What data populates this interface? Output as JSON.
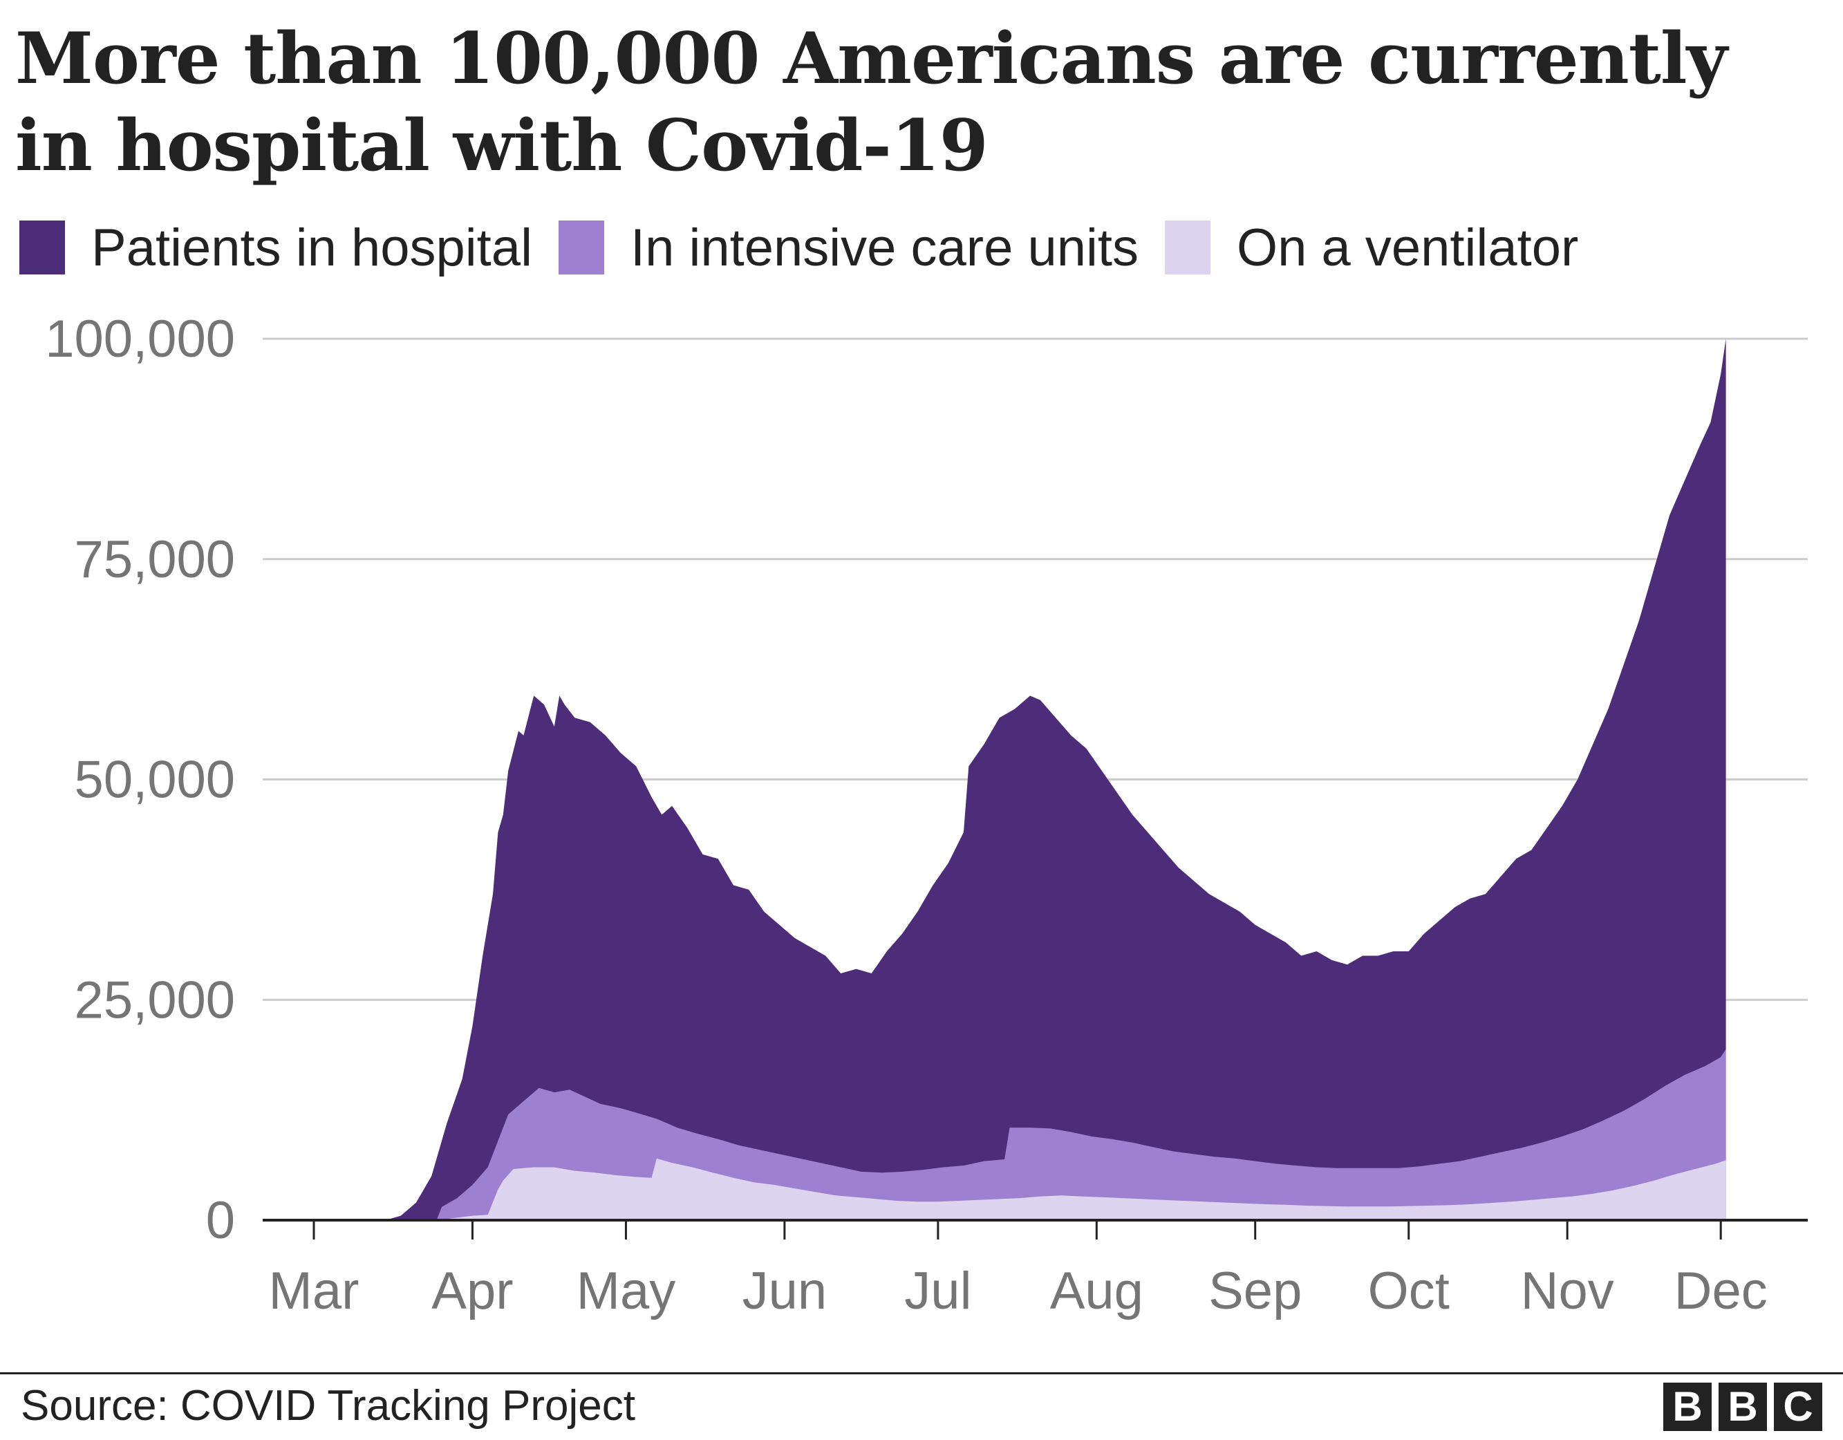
{
  "title": "More than 100,000 Americans are currently in hospital with Covid-19",
  "legend": [
    {
      "label": "Patients in hospital",
      "color": "#4d2c7a"
    },
    {
      "label": "In intensive care units",
      "color": "#9d80cf"
    },
    {
      "label": "On a ventilator",
      "color": "#ddd4f0"
    }
  ],
  "chart_data": {
    "type": "area",
    "title": "More than 100,000 Americans are currently in hospital with Covid-19",
    "xlabel": "",
    "ylabel": "",
    "ylim": [
      0,
      100000
    ],
    "yticks": [
      0,
      25000,
      50000,
      75000,
      100000
    ],
    "ytick_labels": [
      "0",
      "25,000",
      "50,000",
      "75,000",
      "100,000"
    ],
    "x_ticks": [
      {
        "date": "2020-03-01",
        "label": "Mar"
      },
      {
        "date": "2020-04-01",
        "label": "Apr"
      },
      {
        "date": "2020-05-01",
        "label": "May"
      },
      {
        "date": "2020-06-01",
        "label": "Jun"
      },
      {
        "date": "2020-07-01",
        "label": "Jul"
      },
      {
        "date": "2020-08-01",
        "label": "Aug"
      },
      {
        "date": "2020-09-01",
        "label": "Sep"
      },
      {
        "date": "2020-10-01",
        "label": "Oct"
      },
      {
        "date": "2020-11-01",
        "label": "Nov"
      },
      {
        "date": "2020-12-01",
        "label": "Dec"
      }
    ],
    "grid": true,
    "legend_position": "top",
    "series": [
      {
        "name": "Patients in hospital",
        "color": "#4d2c7a",
        "points": [
          [
            "2020-03-01",
            0
          ],
          [
            "2020-03-15",
            0
          ],
          [
            "2020-03-18",
            500
          ],
          [
            "2020-03-21",
            2000
          ],
          [
            "2020-03-24",
            5000
          ],
          [
            "2020-03-27",
            11000
          ],
          [
            "2020-03-30",
            16000
          ],
          [
            "2020-04-01",
            22000
          ],
          [
            "2020-04-03",
            30000
          ],
          [
            "2020-04-05",
            37000
          ],
          [
            "2020-04-06",
            44000
          ],
          [
            "2020-04-07",
            46000
          ],
          [
            "2020-04-08",
            51000
          ],
          [
            "2020-04-10",
            55500
          ],
          [
            "2020-04-11",
            55000
          ],
          [
            "2020-04-13",
            59500
          ],
          [
            "2020-04-15",
            58500
          ],
          [
            "2020-04-17",
            56000
          ],
          [
            "2020-04-18",
            59500
          ],
          [
            "2020-04-19",
            58500
          ],
          [
            "2020-04-21",
            57000
          ],
          [
            "2020-04-24",
            56500
          ],
          [
            "2020-04-27",
            55000
          ],
          [
            "2020-04-30",
            53000
          ],
          [
            "2020-05-03",
            51500
          ],
          [
            "2020-05-06",
            48000
          ],
          [
            "2020-05-08",
            46000
          ],
          [
            "2020-05-10",
            47000
          ],
          [
            "2020-05-13",
            44500
          ],
          [
            "2020-05-16",
            41500
          ],
          [
            "2020-05-19",
            41000
          ],
          [
            "2020-05-22",
            38000
          ],
          [
            "2020-05-25",
            37500
          ],
          [
            "2020-05-28",
            35000
          ],
          [
            "2020-05-31",
            33500
          ],
          [
            "2020-06-03",
            32000
          ],
          [
            "2020-06-06",
            31000
          ],
          [
            "2020-06-09",
            30000
          ],
          [
            "2020-06-12",
            28000
          ],
          [
            "2020-06-15",
            28500
          ],
          [
            "2020-06-18",
            28000
          ],
          [
            "2020-06-21",
            30500
          ],
          [
            "2020-06-24",
            32500
          ],
          [
            "2020-06-27",
            35000
          ],
          [
            "2020-06-30",
            38000
          ],
          [
            "2020-07-03",
            40500
          ],
          [
            "2020-07-06",
            44000
          ],
          [
            "2020-07-07",
            51500
          ],
          [
            "2020-07-10",
            54000
          ],
          [
            "2020-07-13",
            57000
          ],
          [
            "2020-07-16",
            58000
          ],
          [
            "2020-07-19",
            59500
          ],
          [
            "2020-07-21",
            59000
          ],
          [
            "2020-07-24",
            57000
          ],
          [
            "2020-07-27",
            55000
          ],
          [
            "2020-07-30",
            53500
          ],
          [
            "2020-08-02",
            51000
          ],
          [
            "2020-08-05",
            48500
          ],
          [
            "2020-08-08",
            46000
          ],
          [
            "2020-08-11",
            44000
          ],
          [
            "2020-08-14",
            42000
          ],
          [
            "2020-08-17",
            40000
          ],
          [
            "2020-08-20",
            38500
          ],
          [
            "2020-08-23",
            37000
          ],
          [
            "2020-08-26",
            36000
          ],
          [
            "2020-08-29",
            35000
          ],
          [
            "2020-09-01",
            33500
          ],
          [
            "2020-09-04",
            32500
          ],
          [
            "2020-09-07",
            31500
          ],
          [
            "2020-09-10",
            30000
          ],
          [
            "2020-09-13",
            30500
          ],
          [
            "2020-09-16",
            29500
          ],
          [
            "2020-09-19",
            29000
          ],
          [
            "2020-09-22",
            30000
          ],
          [
            "2020-09-25",
            30000
          ],
          [
            "2020-09-28",
            30500
          ],
          [
            "2020-10-01",
            30500
          ],
          [
            "2020-10-04",
            32500
          ],
          [
            "2020-10-07",
            34000
          ],
          [
            "2020-10-10",
            35500
          ],
          [
            "2020-10-13",
            36500
          ],
          [
            "2020-10-16",
            37000
          ],
          [
            "2020-10-19",
            39000
          ],
          [
            "2020-10-22",
            41000
          ],
          [
            "2020-10-25",
            42000
          ],
          [
            "2020-10-28",
            44500
          ],
          [
            "2020-10-31",
            47000
          ],
          [
            "2020-11-03",
            50000
          ],
          [
            "2020-11-06",
            54000
          ],
          [
            "2020-11-09",
            58000
          ],
          [
            "2020-11-12",
            63000
          ],
          [
            "2020-11-15",
            68000
          ],
          [
            "2020-11-18",
            74000
          ],
          [
            "2020-11-21",
            80000
          ],
          [
            "2020-11-24",
            84000
          ],
          [
            "2020-11-27",
            88000
          ],
          [
            "2020-11-29",
            90500
          ],
          [
            "2020-12-01",
            96000
          ],
          [
            "2020-12-02",
            100000
          ]
        ]
      },
      {
        "name": "In intensive care units",
        "color": "#9d80cf",
        "points": [
          [
            "2020-03-25",
            0
          ],
          [
            "2020-03-26",
            1500
          ],
          [
            "2020-03-29",
            2500
          ],
          [
            "2020-04-01",
            4000
          ],
          [
            "2020-04-04",
            6000
          ],
          [
            "2020-04-06",
            9000
          ],
          [
            "2020-04-08",
            12000
          ],
          [
            "2020-04-11",
            13500
          ],
          [
            "2020-04-14",
            15000
          ],
          [
            "2020-04-17",
            14500
          ],
          [
            "2020-04-20",
            14800
          ],
          [
            "2020-04-23",
            14000
          ],
          [
            "2020-04-26",
            13200
          ],
          [
            "2020-04-30",
            12700
          ],
          [
            "2020-05-03",
            12200
          ],
          [
            "2020-05-07",
            11500
          ],
          [
            "2020-05-11",
            10500
          ],
          [
            "2020-05-15",
            9800
          ],
          [
            "2020-05-19",
            9200
          ],
          [
            "2020-05-23",
            8500
          ],
          [
            "2020-05-27",
            8000
          ],
          [
            "2020-05-31",
            7500
          ],
          [
            "2020-06-04",
            7000
          ],
          [
            "2020-06-08",
            6500
          ],
          [
            "2020-06-12",
            6000
          ],
          [
            "2020-06-16",
            5500
          ],
          [
            "2020-06-20",
            5400
          ],
          [
            "2020-06-24",
            5500
          ],
          [
            "2020-06-28",
            5700
          ],
          [
            "2020-07-02",
            6000
          ],
          [
            "2020-07-06",
            6200
          ],
          [
            "2020-07-10",
            6700
          ],
          [
            "2020-07-14",
            6900
          ],
          [
            "2020-07-15",
            10500
          ],
          [
            "2020-07-19",
            10500
          ],
          [
            "2020-07-23",
            10400
          ],
          [
            "2020-07-27",
            10000
          ],
          [
            "2020-07-31",
            9500
          ],
          [
            "2020-08-04",
            9200
          ],
          [
            "2020-08-08",
            8800
          ],
          [
            "2020-08-12",
            8300
          ],
          [
            "2020-08-16",
            7800
          ],
          [
            "2020-08-20",
            7500
          ],
          [
            "2020-08-24",
            7200
          ],
          [
            "2020-08-28",
            7000
          ],
          [
            "2020-09-01",
            6700
          ],
          [
            "2020-09-05",
            6400
          ],
          [
            "2020-09-09",
            6200
          ],
          [
            "2020-09-13",
            6000
          ],
          [
            "2020-09-17",
            5900
          ],
          [
            "2020-09-21",
            5900
          ],
          [
            "2020-09-25",
            5900
          ],
          [
            "2020-09-29",
            5900
          ],
          [
            "2020-10-03",
            6100
          ],
          [
            "2020-10-07",
            6400
          ],
          [
            "2020-10-11",
            6700
          ],
          [
            "2020-10-15",
            7200
          ],
          [
            "2020-10-19",
            7700
          ],
          [
            "2020-10-23",
            8200
          ],
          [
            "2020-10-27",
            8800
          ],
          [
            "2020-10-31",
            9500
          ],
          [
            "2020-11-04",
            10300
          ],
          [
            "2020-11-08",
            11300
          ],
          [
            "2020-11-12",
            12400
          ],
          [
            "2020-11-16",
            13700
          ],
          [
            "2020-11-20",
            15200
          ],
          [
            "2020-11-24",
            16500
          ],
          [
            "2020-11-28",
            17500
          ],
          [
            "2020-12-01",
            18500
          ],
          [
            "2020-12-02",
            19400
          ]
        ]
      },
      {
        "name": "On a ventilator",
        "color": "#ddd4f0",
        "points": [
          [
            "2020-03-25",
            0
          ],
          [
            "2020-04-01",
            500
          ],
          [
            "2020-04-04",
            600
          ],
          [
            "2020-04-06",
            3500
          ],
          [
            "2020-04-07",
            4500
          ],
          [
            "2020-04-09",
            5800
          ],
          [
            "2020-04-13",
            6000
          ],
          [
            "2020-04-17",
            6000
          ],
          [
            "2020-04-21",
            5600
          ],
          [
            "2020-04-25",
            5400
          ],
          [
            "2020-04-29",
            5100
          ],
          [
            "2020-05-03",
            4900
          ],
          [
            "2020-05-06",
            4800
          ],
          [
            "2020-05-07",
            7000
          ],
          [
            "2020-05-10",
            6500
          ],
          [
            "2020-05-14",
            6000
          ],
          [
            "2020-05-18",
            5400
          ],
          [
            "2020-05-22",
            4800
          ],
          [
            "2020-05-26",
            4300
          ],
          [
            "2020-05-30",
            4000
          ],
          [
            "2020-06-03",
            3600
          ],
          [
            "2020-06-07",
            3200
          ],
          [
            "2020-06-11",
            2800
          ],
          [
            "2020-06-15",
            2600
          ],
          [
            "2020-06-19",
            2400
          ],
          [
            "2020-06-23",
            2200
          ],
          [
            "2020-06-27",
            2100
          ],
          [
            "2020-07-01",
            2100
          ],
          [
            "2020-07-05",
            2200
          ],
          [
            "2020-07-09",
            2300
          ],
          [
            "2020-07-13",
            2400
          ],
          [
            "2020-07-17",
            2500
          ],
          [
            "2020-07-21",
            2700
          ],
          [
            "2020-07-25",
            2800
          ],
          [
            "2020-07-29",
            2700
          ],
          [
            "2020-08-02",
            2600
          ],
          [
            "2020-08-06",
            2500
          ],
          [
            "2020-08-10",
            2400
          ],
          [
            "2020-08-14",
            2300
          ],
          [
            "2020-08-18",
            2200
          ],
          [
            "2020-08-22",
            2100
          ],
          [
            "2020-08-26",
            2000
          ],
          [
            "2020-08-30",
            1900
          ],
          [
            "2020-09-03",
            1800
          ],
          [
            "2020-09-07",
            1750
          ],
          [
            "2020-09-11",
            1650
          ],
          [
            "2020-09-15",
            1600
          ],
          [
            "2020-09-19",
            1550
          ],
          [
            "2020-09-23",
            1550
          ],
          [
            "2020-09-27",
            1550
          ],
          [
            "2020-10-01",
            1600
          ],
          [
            "2020-10-05",
            1650
          ],
          [
            "2020-10-09",
            1700
          ],
          [
            "2020-10-13",
            1800
          ],
          [
            "2020-10-17",
            1950
          ],
          [
            "2020-10-21",
            2100
          ],
          [
            "2020-10-25",
            2300
          ],
          [
            "2020-10-29",
            2500
          ],
          [
            "2020-11-02",
            2700
          ],
          [
            "2020-11-06",
            3000
          ],
          [
            "2020-11-10",
            3400
          ],
          [
            "2020-11-14",
            3900
          ],
          [
            "2020-11-18",
            4500
          ],
          [
            "2020-11-22",
            5200
          ],
          [
            "2020-11-26",
            5800
          ],
          [
            "2020-11-30",
            6400
          ],
          [
            "2020-12-02",
            6800
          ]
        ]
      }
    ]
  },
  "source": "Source: COVID Tracking Project",
  "logo": [
    "B",
    "B",
    "C"
  ]
}
